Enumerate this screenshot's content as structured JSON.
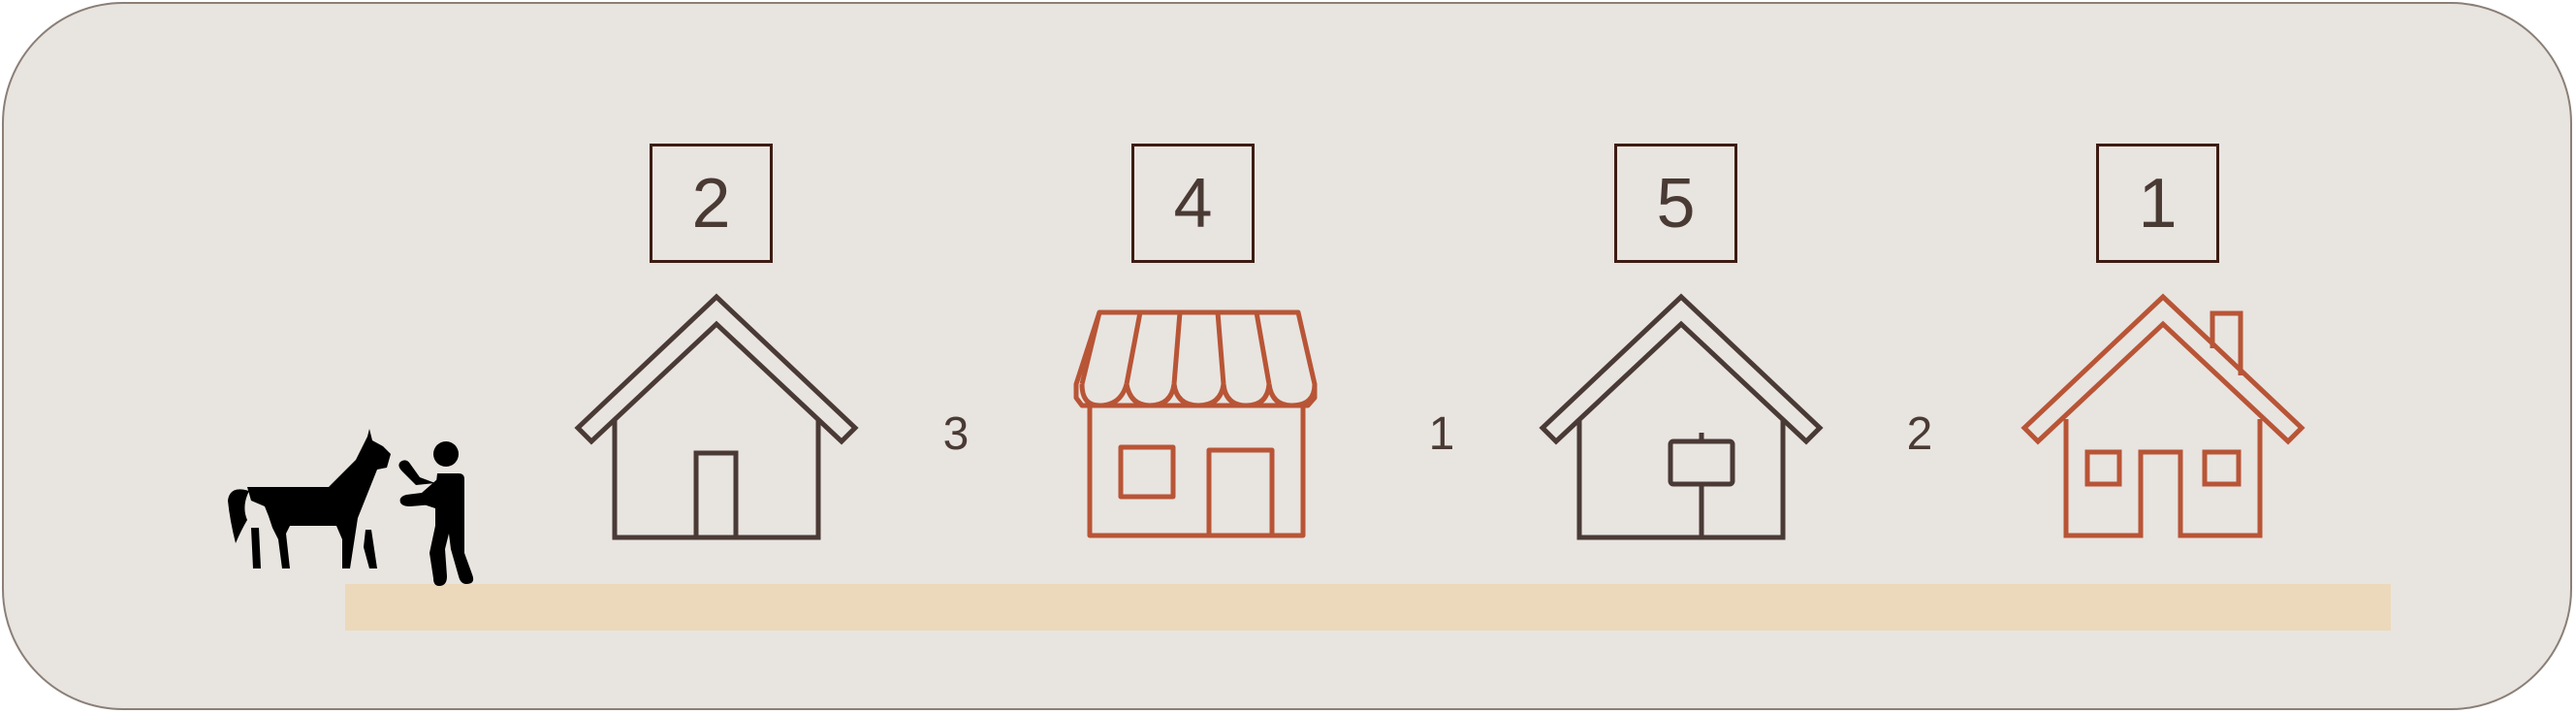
{
  "stops": [
    {
      "number": "2",
      "building": "house-icon",
      "color": "#4a3a36"
    },
    {
      "number": "4",
      "building": "shop-icon",
      "color": "#b85536"
    },
    {
      "number": "5",
      "building": "house-with-sign-icon",
      "color": "#4a3a36"
    },
    {
      "number": "1",
      "building": "house-with-chimney-icon",
      "color": "#b85536"
    }
  ],
  "gaps": [
    {
      "value": "3"
    },
    {
      "value": "1"
    },
    {
      "value": "2"
    }
  ],
  "traveler": {
    "icon": "horse-and-person-icon",
    "color": "#000000"
  },
  "colors": {
    "panel": "#e8e4e0",
    "road": "#ecd9bb",
    "box_border": "#3c1c12",
    "dark": "#4a3a36",
    "accent": "#b85536"
  }
}
